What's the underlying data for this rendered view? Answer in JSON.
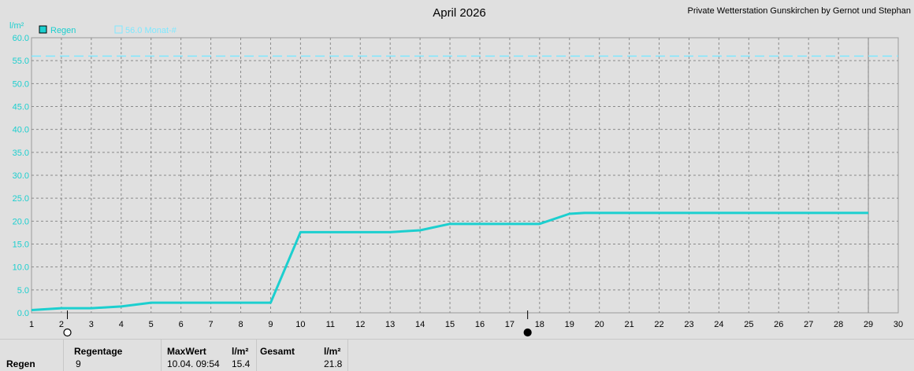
{
  "chart_data": {
    "type": "line",
    "title": "April 2026",
    "subtitle": "Private Wetterstation Gunskirchen by Gernot und Stephan",
    "ylabel": "l/m²",
    "xlim": [
      1,
      30
    ],
    "ylim": [
      0,
      60
    ],
    "x_ticks": [
      1,
      2,
      3,
      4,
      5,
      6,
      7,
      8,
      9,
      10,
      11,
      12,
      13,
      14,
      15,
      16,
      17,
      18,
      19,
      20,
      21,
      22,
      23,
      24,
      25,
      26,
      27,
      28,
      29,
      30
    ],
    "y_ticks": [
      "0.0",
      "5.0",
      "10.0",
      "15.0",
      "20.0",
      "25.0",
      "30.0",
      "35.0",
      "40.0",
      "45.0",
      "50.0",
      "55.0",
      "60.0"
    ],
    "grid": true,
    "legend_placement": "top-left",
    "series": [
      {
        "name": "Regen",
        "color": "#1ccfcf",
        "points": [
          [
            1,
            0.6
          ],
          [
            2,
            1.0
          ],
          [
            3,
            1.0
          ],
          [
            4,
            1.4
          ],
          [
            5,
            2.2
          ],
          [
            6,
            2.2
          ],
          [
            7,
            2.2
          ],
          [
            8,
            2.2
          ],
          [
            9,
            2.2
          ],
          [
            10,
            17.6
          ],
          [
            11,
            17.6
          ],
          [
            12,
            17.6
          ],
          [
            13,
            17.6
          ],
          [
            14,
            18.0
          ],
          [
            15,
            19.4
          ],
          [
            16,
            19.4
          ],
          [
            17,
            19.4
          ],
          [
            18,
            19.4
          ],
          [
            19,
            21.6
          ],
          [
            19.5,
            21.8
          ],
          [
            20,
            21.8
          ],
          [
            21,
            21.8
          ],
          [
            22,
            21.8
          ],
          [
            23,
            21.8
          ],
          [
            24,
            21.8
          ],
          [
            25,
            21.8
          ],
          [
            26,
            21.8
          ],
          [
            27,
            21.8
          ],
          [
            28,
            21.8
          ],
          [
            29,
            21.8
          ]
        ]
      },
      {
        "name": "56.0 Monat-#",
        "color": "#7fe8ff",
        "value": 56.0,
        "style": "dashed"
      }
    ],
    "moon_phases": [
      {
        "x": 2.2,
        "phase": "full-moon-icon"
      },
      {
        "x": 17.6,
        "phase": "new-moon-icon"
      }
    ]
  },
  "footer": {
    "row_label": "Regen",
    "regentage_header": "Regentage",
    "regentage_value": "9",
    "maxwert_header": "MaxWert",
    "maxwert_unit": "l/m²",
    "maxwert_date": "10.04.  09:54",
    "maxwert_value": "15.4",
    "gesamt_header": "Gesamt",
    "gesamt_unit": "l/m²",
    "gesamt_value": "21.8"
  }
}
